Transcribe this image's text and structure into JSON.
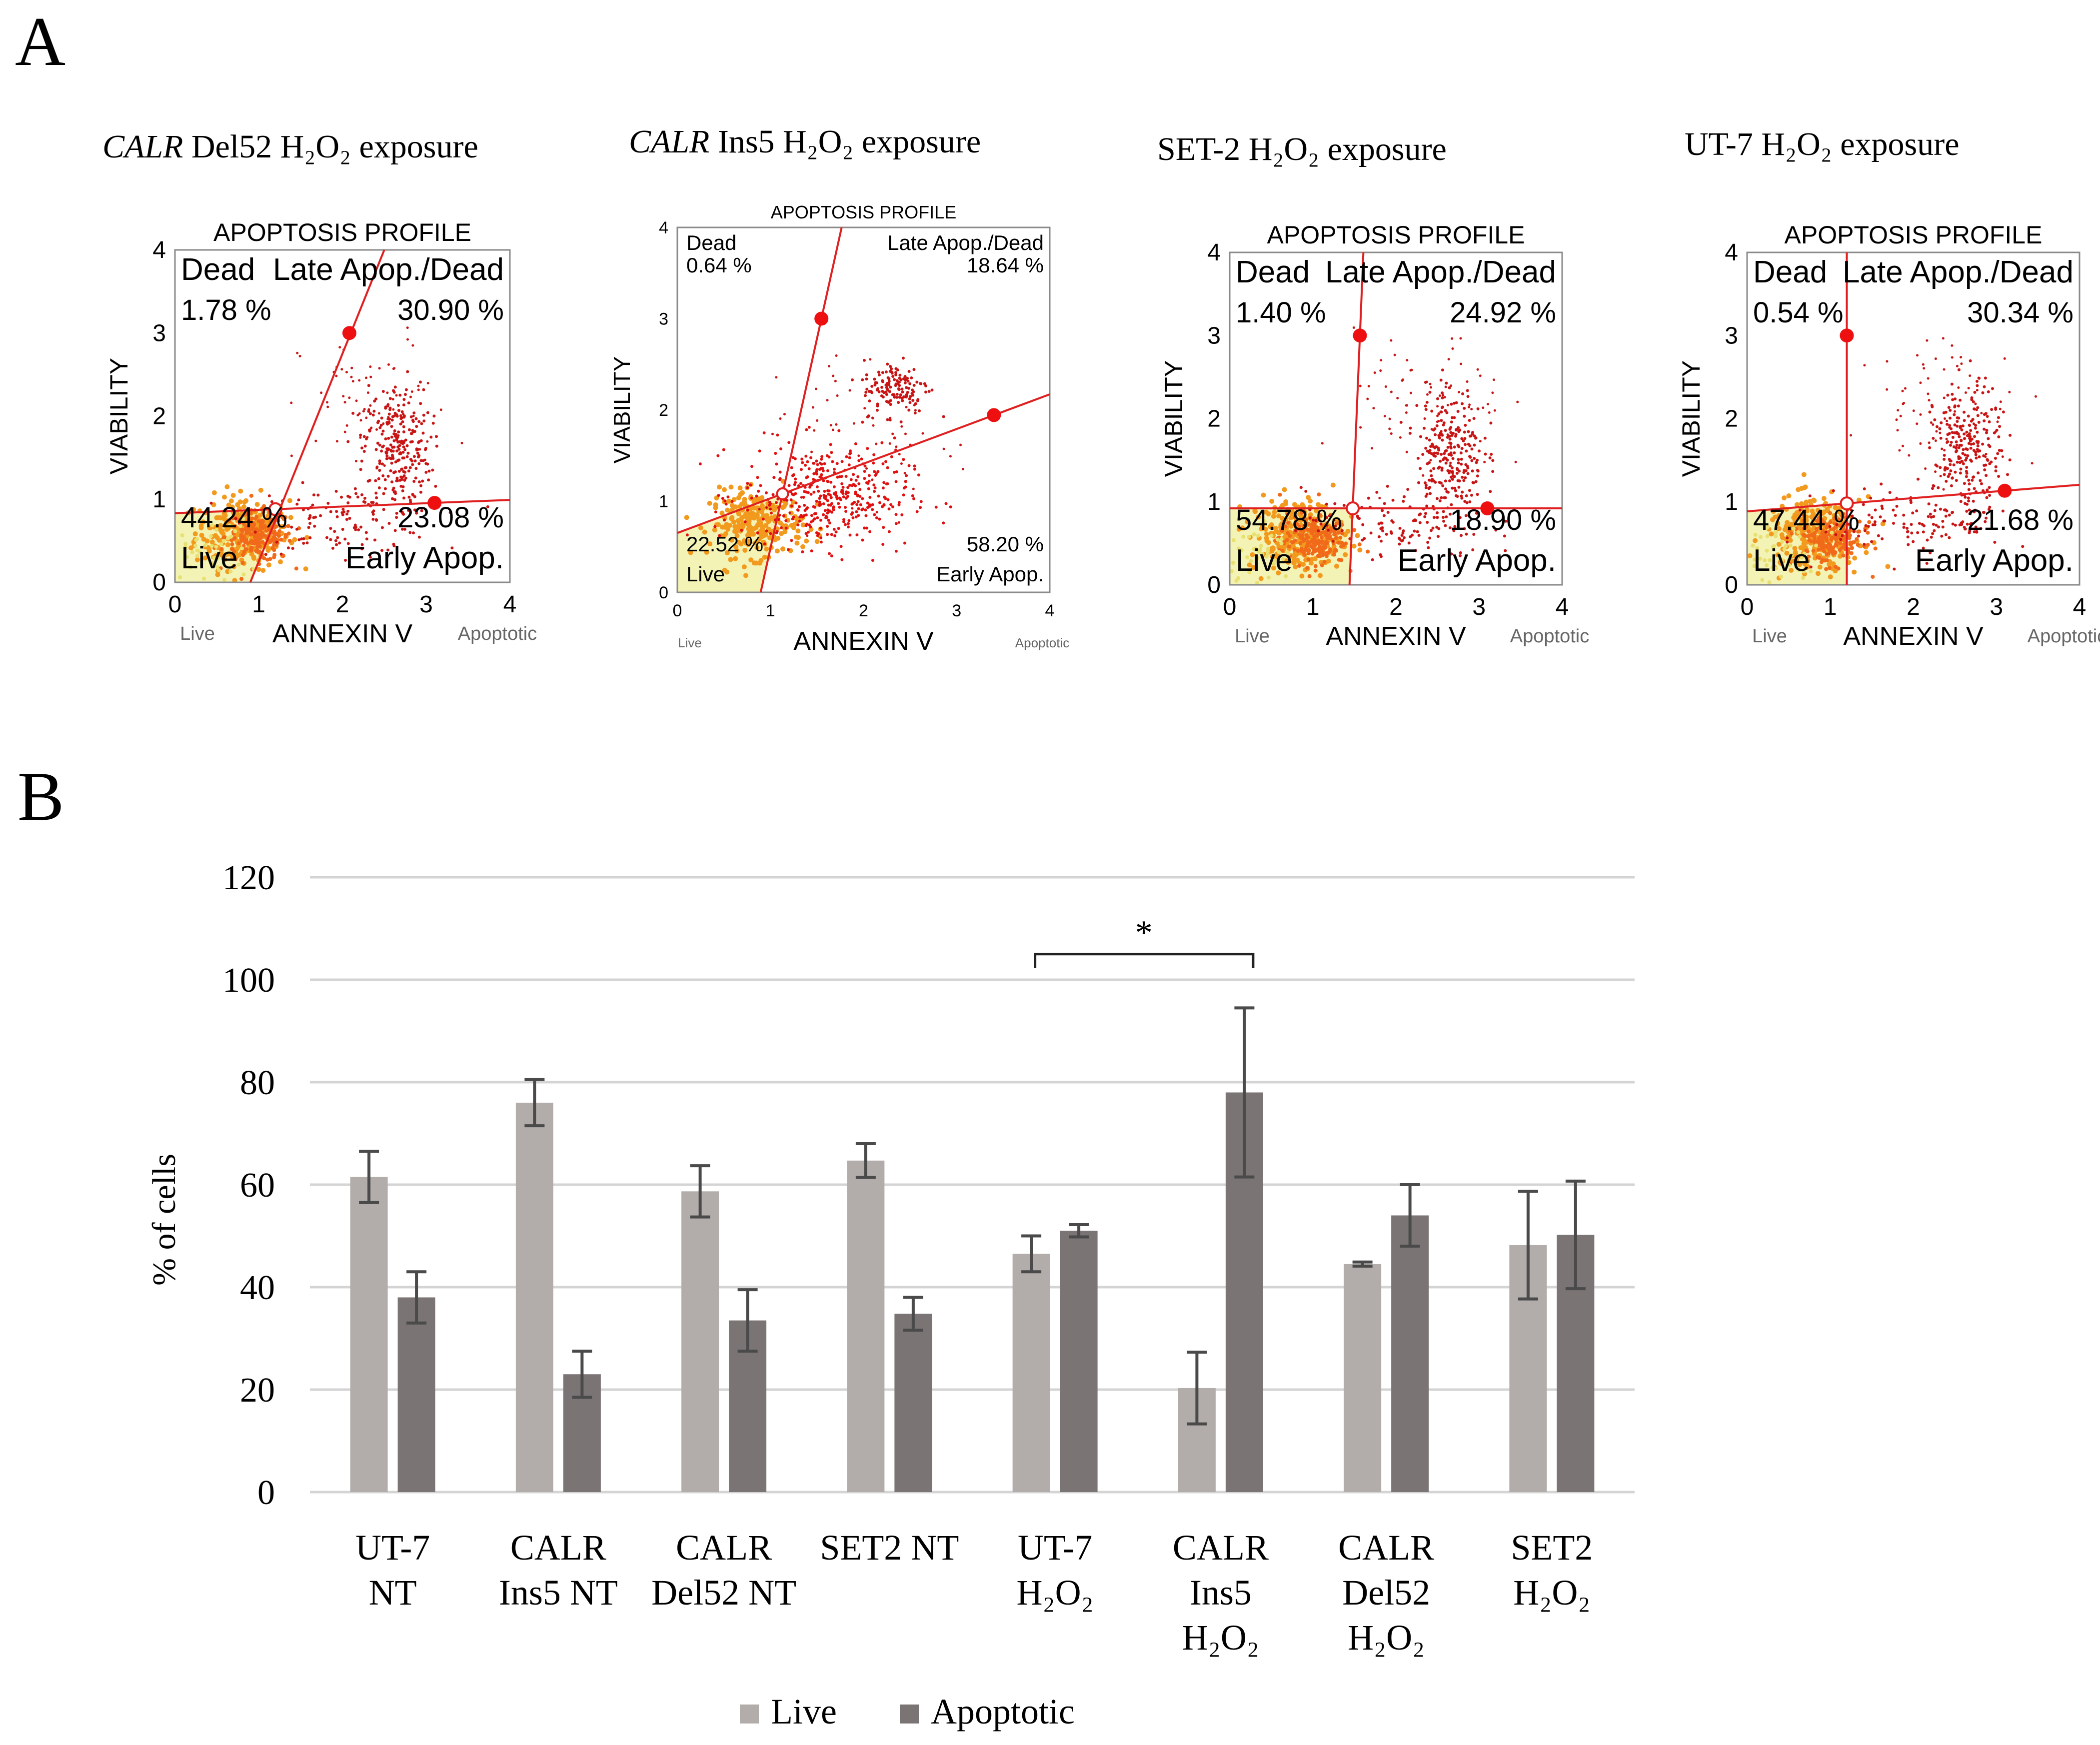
{
  "panel_a": {
    "label": "A",
    "plots": [
      {
        "title_italic": "CALR",
        "title_rest": " Del52 H₂O₂ exposure",
        "header": "APOPTOSIS PROFILE",
        "ylabel": "VIABILITY",
        "xlabel": "ANNEXIN V",
        "x_live": "Live",
        "x_apoptotic": "Apoptotic",
        "ticks": [
          "0",
          "1",
          "2",
          "3",
          "4"
        ],
        "q_dead": "Dead",
        "q_late": "Late Apop./Dead",
        "q_live": "Live",
        "q_early": "Early Apop.",
        "pct_dead": "1.78 %",
        "pct_late": "30.90 %",
        "pct_live": "44.24 %",
        "pct_early": "23.08 %",
        "gate_x": 1.2,
        "gate_y": 0.88,
        "dead_angle": 2.4,
        "early_slope": 0.04
      },
      {
        "title_italic": "CALR",
        "title_rest": " Ins5 H₂O₂ exposure",
        "header": "APOPTOSIS PROFILE",
        "ylabel": "VIABILITY",
        "xlabel": "ANNEXIN V",
        "x_live": "Live",
        "x_apoptotic": "Apoptotic",
        "ticks": [
          "0",
          "1",
          "2",
          "3",
          "4"
        ],
        "q_dead": "Dead",
        "q_late": "Late Apop./Dead",
        "q_live": "Live",
        "q_early": "Early Apop.",
        "pct_dead": "0.64 %",
        "pct_late": "18.64 %",
        "pct_live": "22.52 %",
        "pct_early": "58.20 %",
        "gate_x": 1.13,
        "gate_y": 1.08,
        "dead_angle": 4.6,
        "early_slope": 0.38
      },
      {
        "title_italic": "",
        "title_rest": "SET-2 H₂O₂ exposure",
        "header": "APOPTOSIS PROFILE",
        "ylabel": "VIABILITY",
        "xlabel": "ANNEXIN V",
        "x_live": "Live",
        "x_apoptotic": "Apoptotic",
        "ticks": [
          "0",
          "1",
          "2",
          "3",
          "4"
        ],
        "q_dead": "Dead",
        "q_late": "Late Apop./Dead",
        "q_live": "Live",
        "q_early": "Early Apop.",
        "pct_dead": "1.40 %",
        "pct_late": "24.92 %",
        "pct_live": "54.78 %",
        "pct_early": "18.90 %",
        "gate_x": 1.48,
        "gate_y": 0.92,
        "dead_angle": 24,
        "early_slope": 0.0
      },
      {
        "title_italic": "",
        "title_rest": "UT-7  H₂O₂ exposure",
        "header": "APOPTOSIS PROFILE",
        "ylabel": "VIABILITY",
        "xlabel": "ANNEXIN V",
        "x_live": "Live",
        "x_apoptotic": "Apoptotic",
        "ticks": [
          "0",
          "1",
          "2",
          "3",
          "4"
        ],
        "q_dead": "Dead",
        "q_late": "Late Apop./Dead",
        "q_live": "Live",
        "q_early": "Early Apop.",
        "pct_dead": "0.54 %",
        "pct_late": "30.34 %",
        "pct_live": "47.44 %",
        "pct_early": "21.68 %",
        "gate_x": 1.2,
        "gate_y": 0.98,
        "dead_angle": 999,
        "early_slope": 0.08
      }
    ]
  },
  "panel_b": {
    "label": "B",
    "significance": "*"
  },
  "chart_data": {
    "type": "bar",
    "title": "",
    "xlabel": "",
    "ylabel": "% of cells",
    "ylim": [
      0,
      120
    ],
    "yticks": [
      "0",
      "20",
      "40",
      "60",
      "80",
      "100",
      "120"
    ],
    "grid": true,
    "legend_position": "bottom",
    "categories": [
      [
        "UT-7",
        "NT"
      ],
      [
        "CALR",
        "Ins5 NT"
      ],
      [
        "CALR",
        "Del52 NT"
      ],
      [
        "SET2 NT"
      ],
      [
        "UT-7",
        "H₂O₂"
      ],
      [
        "CALR",
        "Ins5",
        "H₂O₂"
      ],
      [
        "CALR",
        "Del52",
        "H₂O₂"
      ],
      [
        "SET2",
        "H₂O₂"
      ]
    ],
    "series": [
      {
        "name": "Live",
        "color": "#b2adab",
        "values": [
          61.5,
          76,
          58.7,
          64.7,
          46.5,
          20.3,
          44.5,
          48.2
        ],
        "errors": [
          5,
          4.5,
          5,
          3.3,
          3.5,
          7,
          0.4,
          10.5
        ]
      },
      {
        "name": "Apoptotic",
        "color": "#7b7474",
        "values": [
          38,
          23,
          33.5,
          34.8,
          51,
          78,
          54,
          50.2
        ],
        "errors": [
          5,
          4.5,
          6,
          3.2,
          1.2,
          16.5,
          6,
          10.5
        ]
      }
    ],
    "significance_bracket": {
      "from_category": 4,
      "to_category": 5,
      "y": 105
    }
  }
}
